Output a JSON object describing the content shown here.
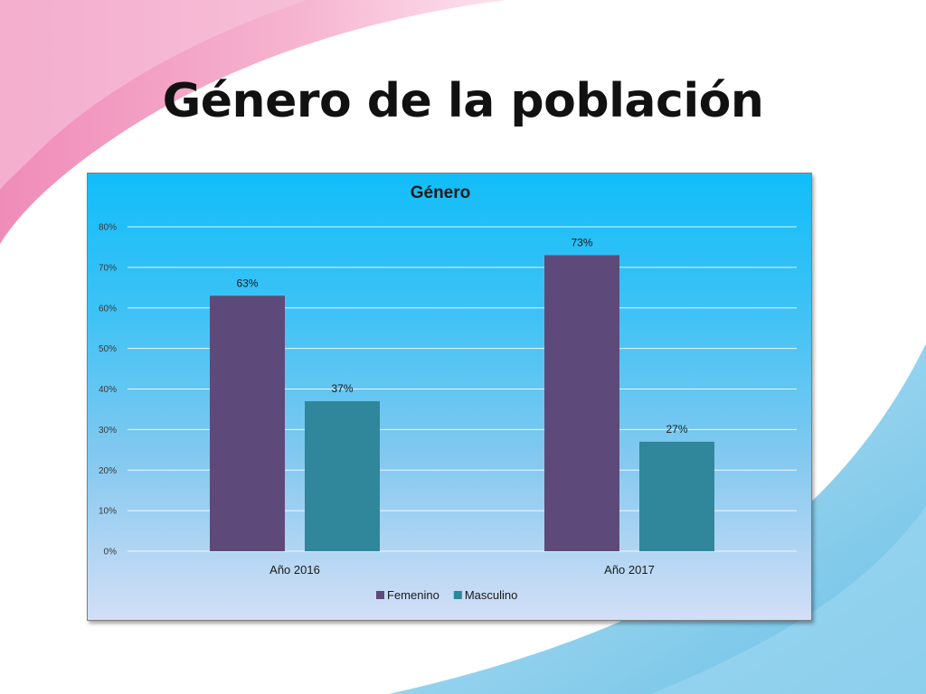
{
  "slide": {
    "title": "Género de la población"
  },
  "colors": {
    "femenino": "#5e4a7a",
    "masculino": "#30869a",
    "gridline": "#ffffff"
  },
  "chart_data": {
    "type": "bar",
    "title": "Género",
    "categories": [
      "Año 2016",
      "Año 2017"
    ],
    "series": [
      {
        "name": "Femenino",
        "values": [
          63,
          73
        ],
        "labels": [
          "63%",
          "73%"
        ]
      },
      {
        "name": "Masculino",
        "values": [
          37,
          27
        ],
        "labels": [
          "37%",
          "27%"
        ]
      }
    ],
    "ylim": [
      0,
      80
    ],
    "yticks": [
      0,
      10,
      20,
      30,
      40,
      50,
      60,
      70,
      80
    ],
    "ytick_labels": [
      "0%",
      "10%",
      "20%",
      "30%",
      "40%",
      "50%",
      "60%",
      "70%",
      "80%"
    ],
    "grid": true,
    "legend_position": "bottom",
    "xlabel": "",
    "ylabel": ""
  }
}
